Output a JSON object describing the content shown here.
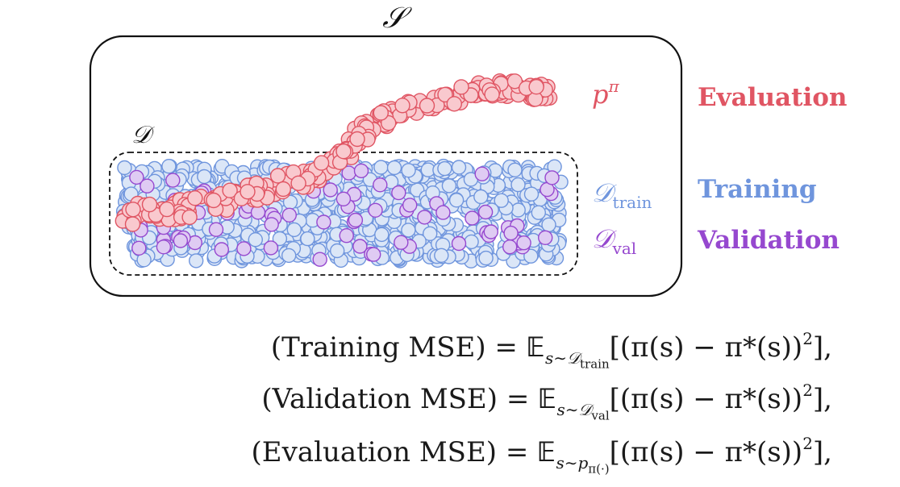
{
  "set_labels": {
    "S": "𝒮",
    "D": "𝒟",
    "D_train_main": "𝒟",
    "D_train_sub": "train",
    "D_val_main": "𝒟",
    "D_val_sub": "val",
    "p_pi_main": "p",
    "p_pi_sup": "π"
  },
  "legend": {
    "evaluation": "Evaluation",
    "training": "Training",
    "validation": "Validation"
  },
  "colors": {
    "evaluation": "#e05563",
    "training": "#6f95dd",
    "validation": "#9648cf",
    "train_fill": "#dbe6f7",
    "val_fill": "#dfcbf3",
    "eval_fill": "#f9c9ce"
  },
  "equations": {
    "training": {
      "lhs": "(Training MSE)",
      "eq": " = ",
      "E": "𝔼",
      "sub_main": "s∼𝒟",
      "sub_sub": "train",
      "rhs": "[(π(s) − π*(s))",
      "sq": "2",
      "end": "],"
    },
    "validation": {
      "lhs": "(Validation MSE)",
      "eq": " = ",
      "E": "𝔼",
      "sub_main": "s∼𝒟",
      "sub_sub": "val",
      "rhs": "[(π(s) − π*(s))",
      "sq": "2",
      "end": "],"
    },
    "evaluation": {
      "lhs": "(Evaluation MSE)",
      "eq": " = ",
      "E": "𝔼",
      "sub_main": "s∼p",
      "sub_sub": "π(·)",
      "rhs": "[(π(s) − π*(s))",
      "sq": "2",
      "end": "],"
    }
  }
}
